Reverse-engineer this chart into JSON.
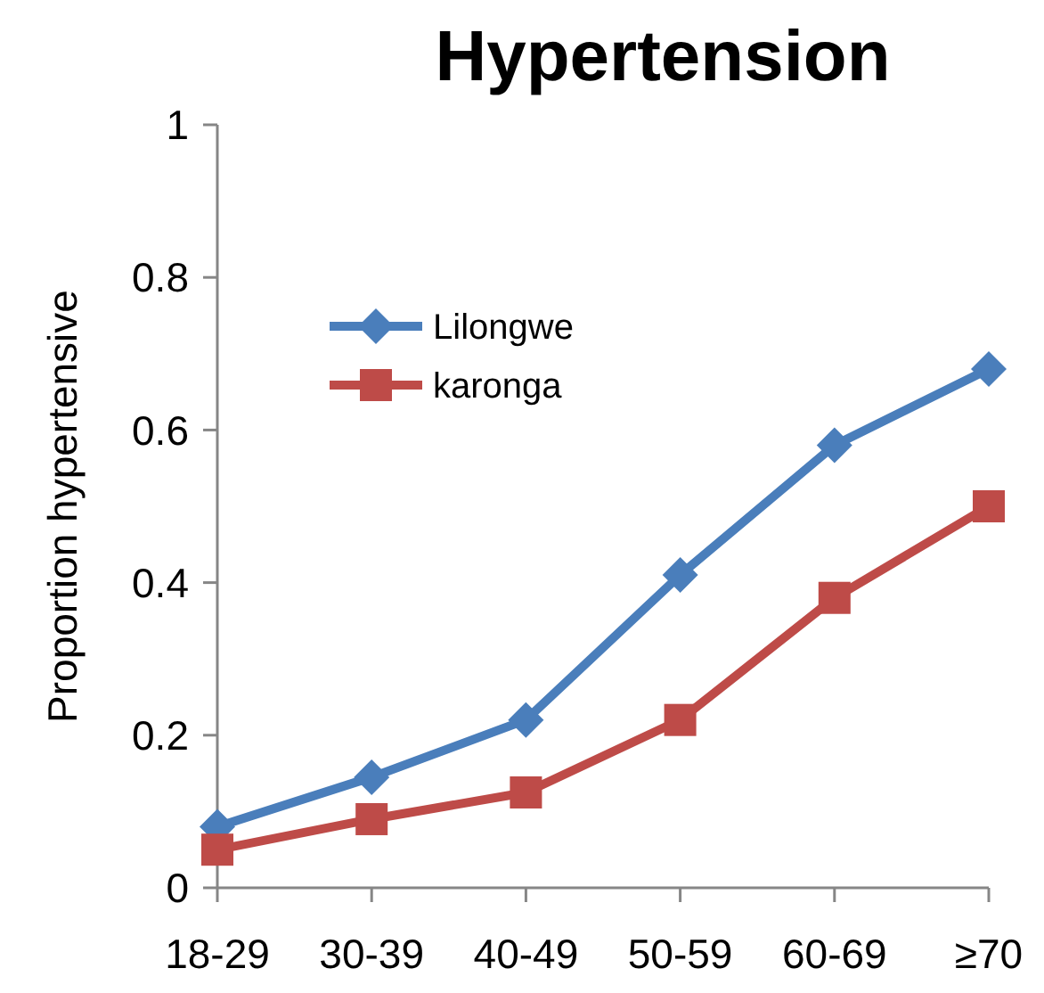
{
  "chart_data": {
    "type": "line",
    "title": "Hypertension",
    "ylabel": "Proportion hypertensive",
    "categories": [
      "18-29",
      "30-39",
      "40-49",
      "50-59",
      "60-69",
      "≥70"
    ],
    "series": [
      {
        "name": "Lilongwe",
        "color": "#4a7ebb",
        "marker": "diamond",
        "values": [
          0.08,
          0.145,
          0.22,
          0.41,
          0.58,
          0.68
        ]
      },
      {
        "name": "karonga",
        "color": "#be4b48",
        "marker": "square",
        "values": [
          0.05,
          0.09,
          0.125,
          0.22,
          0.38,
          0.5
        ]
      }
    ],
    "ylim": [
      0,
      1
    ],
    "yticks": [
      0,
      0.2,
      0.4,
      0.6,
      0.8,
      1
    ],
    "grid": false,
    "legend": "top left"
  }
}
